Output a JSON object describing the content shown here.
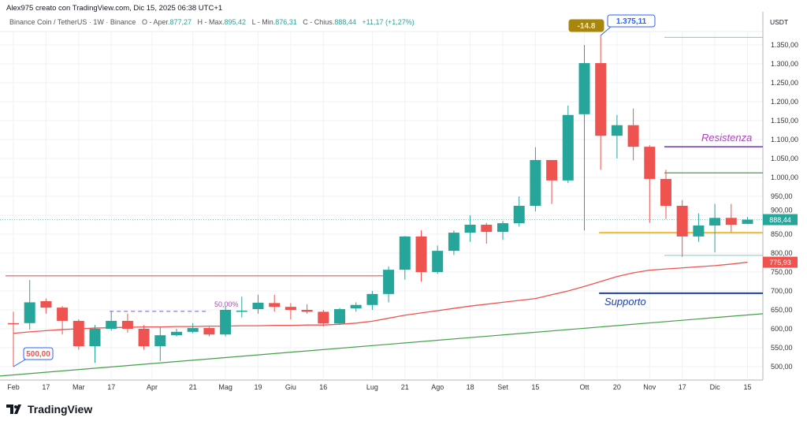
{
  "header": {
    "attribution": "Alex975 creato con TradingView.com, Dic 15, 2025 06:38 UTC+1",
    "symbol": "Binance Coin / TetherUS · 1W · Binance",
    "open_label": "O - Aper.",
    "open": "877,27",
    "high_label": "H - Max.",
    "high": "895,42",
    "low_label": "L - Min.",
    "low": "876,31",
    "close_label": "C - Chius.",
    "close": "888,44",
    "change": "+11,17 (+1,27%)"
  },
  "logo": {
    "text": "TradingView"
  },
  "colors": {
    "up": "#26a69a",
    "down": "#ef5350",
    "ma": "#ef5350",
    "trend": "#43a047",
    "resistance": "#673ab7",
    "support": "#1e40af",
    "orange": "#f5b82e",
    "teal_line": "#80cbc4",
    "callout": "#2962ff",
    "label_purple": "#ab47bc"
  },
  "chart_data": {
    "type": "candlestick",
    "currency": "USDT",
    "ylim": [
      475,
      1390
    ],
    "yticks": [
      "1.350,00",
      "1.300,00",
      "1.250,00",
      "1.200,00",
      "1.150,00",
      "1.100,00",
      "1.050,00",
      "1.000,00",
      "950,00",
      "900,00",
      "850,00",
      "800,00",
      "750,00",
      "700,00",
      "650,00",
      "600,00",
      "550,00",
      "500,00"
    ],
    "ytick_values": [
      1350,
      1300,
      1250,
      1200,
      1150,
      1100,
      1050,
      1000,
      950,
      900,
      850,
      800,
      750,
      700,
      650,
      600,
      550,
      500
    ],
    "xticks": [
      {
        "label": "Feb",
        "week": 0
      },
      {
        "label": "17",
        "week": 2
      },
      {
        "label": "Mar",
        "week": 4
      },
      {
        "label": "17",
        "week": 6
      },
      {
        "label": "Apr",
        "week": 8.5
      },
      {
        "label": "21",
        "week": 11
      },
      {
        "label": "Mag",
        "week": 13
      },
      {
        "label": "19",
        "week": 15
      },
      {
        "label": "Giu",
        "week": 17
      },
      {
        "label": "16",
        "week": 19
      },
      {
        "label": "Lug",
        "week": 22
      },
      {
        "label": "21",
        "week": 24
      },
      {
        "label": "Ago",
        "week": 26
      },
      {
        "label": "18",
        "week": 28
      },
      {
        "label": "Set",
        "week": 30
      },
      {
        "label": "15",
        "week": 32
      },
      {
        "label": "Ott",
        "week": 35
      },
      {
        "label": "20",
        "week": 37
      },
      {
        "label": "Nov",
        "week": 39
      },
      {
        "label": "17",
        "week": 41
      },
      {
        "label": "Dic",
        "week": 43
      },
      {
        "label": "15",
        "week": 45
      }
    ],
    "candles": [
      [
        615,
        645,
        500,
        613
      ],
      [
        615,
        729,
        598,
        670
      ],
      [
        673,
        680,
        640,
        656
      ],
      [
        656,
        660,
        585,
        621
      ],
      [
        621,
        625,
        545,
        554
      ],
      [
        554,
        610,
        510,
        600
      ],
      [
        600,
        645,
        595,
        621
      ],
      [
        621,
        640,
        590,
        600
      ],
      [
        600,
        610,
        545,
        554
      ],
      [
        554,
        605,
        515,
        583
      ],
      [
        583,
        600,
        580,
        592
      ],
      [
        592,
        615,
        588,
        602
      ],
      [
        602,
        605,
        580,
        585
      ],
      [
        585,
        660,
        580,
        650
      ],
      [
        645,
        685,
        630,
        648
      ],
      [
        652,
        690,
        640,
        669
      ],
      [
        668,
        690,
        645,
        658
      ],
      [
        658,
        668,
        625,
        650
      ],
      [
        650,
        665,
        640,
        645
      ],
      [
        645,
        650,
        606,
        614
      ],
      [
        614,
        655,
        610,
        652
      ],
      [
        654,
        670,
        645,
        663
      ],
      [
        663,
        700,
        650,
        692
      ],
      [
        692,
        765,
        670,
        756
      ],
      [
        756,
        845,
        730,
        844
      ],
      [
        844,
        860,
        725,
        750
      ],
      [
        750,
        820,
        745,
        806
      ],
      [
        806,
        860,
        795,
        854
      ],
      [
        854,
        900,
        830,
        875
      ],
      [
        875,
        880,
        825,
        856
      ],
      [
        856,
        885,
        835,
        879
      ],
      [
        879,
        950,
        870,
        925
      ],
      [
        925,
        1080,
        910,
        1046
      ],
      [
        1046,
        1045,
        930,
        992
      ],
      [
        992,
        1190,
        985,
        1165
      ],
      [
        1167,
        1350,
        860,
        1302
      ],
      [
        1302,
        1375.11,
        1020,
        1110
      ],
      [
        1110,
        1165,
        1050,
        1138
      ],
      [
        1138,
        1182,
        1045,
        1081
      ],
      [
        1081,
        1085,
        880,
        996
      ],
      [
        996,
        1020,
        890,
        925
      ],
      [
        925,
        940,
        790,
        844
      ],
      [
        844,
        905,
        830,
        873
      ],
      [
        873,
        930,
        802,
        893
      ],
      [
        893,
        930,
        855,
        875
      ],
      [
        877.27,
        895.42,
        876.31,
        888.44
      ]
    ],
    "candle_fields": [
      "open",
      "high",
      "low",
      "close"
    ],
    "moving_average": [
      588,
      592,
      595,
      598,
      600,
      602,
      603,
      604,
      605,
      605,
      606,
      606,
      607,
      607,
      608,
      608,
      609,
      609,
      610,
      610,
      612,
      615,
      620,
      628,
      636,
      642,
      648,
      654,
      660,
      665,
      670,
      675,
      680,
      690,
      700,
      712,
      725,
      738,
      748,
      755,
      758,
      761,
      764,
      767,
      771,
      775.93
    ],
    "trendline": {
      "start": 492,
      "end": 642
    },
    "levels": [
      {
        "name": "red-horizontal",
        "price": 740,
        "from_week": 0,
        "to_week": 23
      },
      {
        "name": "fib-50",
        "price": 646,
        "from_week": 6,
        "to_week": 12,
        "label": "50,00%"
      },
      {
        "name": "teal-top",
        "price": 1370,
        "from_week": 40,
        "to_week": 46
      },
      {
        "name": "resistance",
        "price": 1081,
        "from_week": 40,
        "to_week": 46,
        "label": "Resistenza"
      },
      {
        "name": "green-level",
        "price": 1012,
        "from_week": 40,
        "to_week": 46
      },
      {
        "name": "orange-level",
        "price": 854,
        "from_week": 36,
        "to_week": 46
      },
      {
        "name": "teal-bottom",
        "price": 794,
        "from_week": 40,
        "to_week": 46
      },
      {
        "name": "support",
        "price": 694,
        "from_week": 36,
        "to_week": 46,
        "label": "Supporto"
      }
    ],
    "callouts": [
      {
        "label": "500,00",
        "price": 500,
        "week": 0
      },
      {
        "label": "1.375,11",
        "price": 1375.11,
        "week": 36
      },
      {
        "label": "-14.8",
        "price": 1375.11,
        "week": 36
      }
    ],
    "last_price_label": "888,44",
    "ma_price_label": "775,93"
  }
}
